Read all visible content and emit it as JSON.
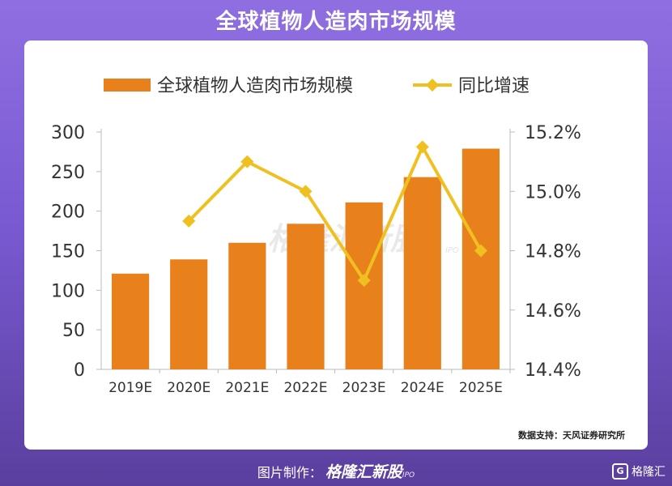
{
  "header": {
    "title": "全球植物人造肉市场规模"
  },
  "chart_data": {
    "type": "bar",
    "categories": [
      "2019E",
      "2020E",
      "2021E",
      "2022E",
      "2023E",
      "2024E",
      "2025E"
    ],
    "series": [
      {
        "name": "全球植物人造肉市场规模",
        "type": "bar",
        "axis": "left",
        "color": "#e8801c",
        "values": [
          121,
          139,
          160,
          184,
          211,
          243,
          279
        ]
      },
      {
        "name": "同比增速",
        "type": "line",
        "axis": "right",
        "color": "#f0c020",
        "values": [
          null,
          14.9,
          15.1,
          15.0,
          14.7,
          15.15,
          14.8
        ]
      }
    ],
    "left_axis": {
      "ylim": [
        0,
        300
      ],
      "ticks": [
        "0",
        "50",
        "100",
        "150",
        "200",
        "250",
        "300"
      ]
    },
    "right_axis": {
      "ylim": [
        14.4,
        15.2
      ],
      "ticks": [
        "14.4%",
        "14.6%",
        "14.8%",
        "15.0%",
        "15.2%"
      ]
    },
    "legend_position": "top",
    "grid": false
  },
  "watermark": {
    "text": "格隆汇新股",
    "sub": "IPO"
  },
  "source": "数据支持：天风证券研究所",
  "footer": {
    "prefix": "图片制作：",
    "brand": "格隆汇新股",
    "ipo": "IPO"
  },
  "corner_brand": {
    "logo": "G",
    "text": "格隆汇"
  }
}
